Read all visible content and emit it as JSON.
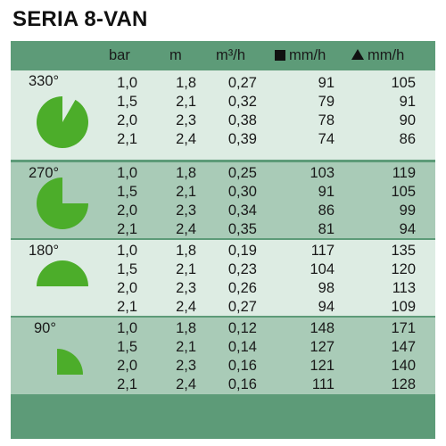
{
  "title": "SERIA 8-VAN",
  "header": {
    "bar": "bar",
    "m": "m",
    "flow": "m³/h",
    "square_rate": "mm/h",
    "triangle_rate": "mm/h",
    "square_icon": "square-icon",
    "triangle_icon": "triangle-icon"
  },
  "colors": {
    "border": "#5d9b78",
    "light_row": "#ddece3",
    "dark_row": "#a9cbb7",
    "pie": "#4cad2a"
  },
  "sections": [
    {
      "angle": "330°",
      "arc_degrees": 330,
      "rows": [
        {
          "bar": "1,0",
          "m": "1,8",
          "flow": "0,27",
          "sq": "91",
          "tri": "105"
        },
        {
          "bar": "1,5",
          "m": "2,1",
          "flow": "0,32",
          "sq": "79",
          "tri": "91"
        },
        {
          "bar": "2,0",
          "m": "2,3",
          "flow": "0,38",
          "sq": "78",
          "tri": "90"
        },
        {
          "bar": "2,1",
          "m": "2,4",
          "flow": "0,39",
          "sq": "74",
          "tri": "86"
        }
      ]
    },
    {
      "angle": "270°",
      "arc_degrees": 270,
      "rows": [
        {
          "bar": "1,0",
          "m": "1,8",
          "flow": "0,25",
          "sq": "103",
          "tri": "119"
        },
        {
          "bar": "1,5",
          "m": "2,1",
          "flow": "0,30",
          "sq": "91",
          "tri": "105"
        },
        {
          "bar": "2,0",
          "m": "2,3",
          "flow": "0,34",
          "sq": "86",
          "tri": "99"
        },
        {
          "bar": "2,1",
          "m": "2,4",
          "flow": "0,35",
          "sq": "81",
          "tri": "94"
        }
      ]
    },
    {
      "angle": "180°",
      "arc_degrees": 180,
      "rows": [
        {
          "bar": "1,0",
          "m": "1,8",
          "flow": "0,19",
          "sq": "117",
          "tri": "135"
        },
        {
          "bar": "1,5",
          "m": "2,1",
          "flow": "0,23",
          "sq": "104",
          "tri": "120"
        },
        {
          "bar": "2,0",
          "m": "2,3",
          "flow": "0,26",
          "sq": "98",
          "tri": "113"
        },
        {
          "bar": "2,1",
          "m": "2,4",
          "flow": "0,27",
          "sq": "94",
          "tri": "109"
        }
      ]
    },
    {
      "angle": "90°",
      "arc_degrees": 90,
      "rows": [
        {
          "bar": "1,0",
          "m": "1,8",
          "flow": "0,12",
          "sq": "148",
          "tri": "171"
        },
        {
          "bar": "1,5",
          "m": "2,1",
          "flow": "0,14",
          "sq": "127",
          "tri": "147"
        },
        {
          "bar": "2,0",
          "m": "2,3",
          "flow": "0,16",
          "sq": "121",
          "tri": "140"
        },
        {
          "bar": "2,1",
          "m": "2,4",
          "flow": "0,16",
          "sq": "111",
          "tri": "128"
        }
      ]
    }
  ]
}
